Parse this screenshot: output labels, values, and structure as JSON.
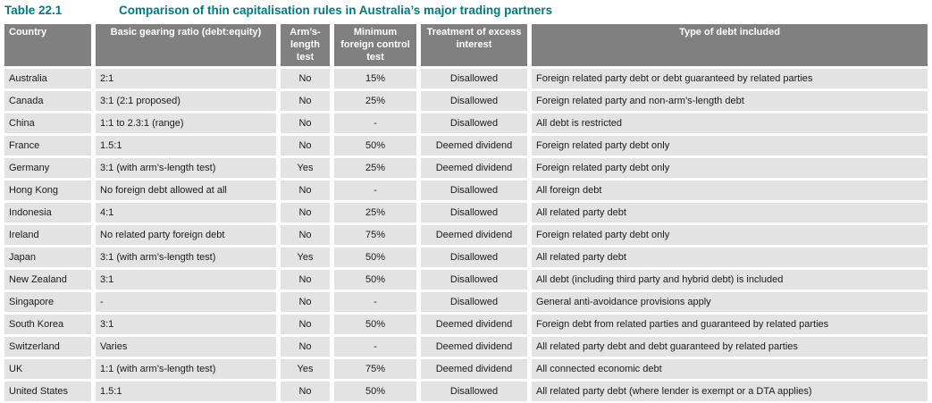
{
  "title": {
    "label": "Table 22.1",
    "text": "Comparison of thin capitalisation rules in Australia’s major trading partners"
  },
  "table": {
    "columns": [
      {
        "key": "country",
        "label": "Country",
        "header_align": "left",
        "cell_align": "left"
      },
      {
        "key": "gearing-ratio",
        "label": "Basic gearing ratio (debt:equity)",
        "header_align": "center",
        "cell_align": "left"
      },
      {
        "key": "arms-length-test",
        "label": "Arm’s-length test",
        "header_align": "center",
        "cell_align": "center"
      },
      {
        "key": "min-foreign-control-test",
        "label": "Minimum foreign control test",
        "header_align": "center",
        "cell_align": "center"
      },
      {
        "key": "excess-interest-treatment",
        "label": "Treatment of excess interest",
        "header_align": "center",
        "cell_align": "center"
      },
      {
        "key": "debt-type",
        "label": "Type of debt included",
        "header_align": "center",
        "cell_align": "left"
      }
    ],
    "rows": [
      [
        "Australia",
        "2:1",
        "No",
        "15%",
        "Disallowed",
        "Foreign related party debt or debt guaranteed by related parties"
      ],
      [
        "Canada",
        "3:1 (2:1 proposed)",
        "No",
        "25%",
        "Disallowed",
        "Foreign related party and non-arm’s-length debt"
      ],
      [
        "China",
        "1:1 to 2.3:1 (range)",
        "No",
        "-",
        "Disallowed",
        "All debt is restricted"
      ],
      [
        "France",
        "1.5:1",
        "No",
        "50%",
        "Deemed dividend",
        "Foreign related party debt only"
      ],
      [
        "Germany",
        "3:1 (with arm’s-length test)",
        "Yes",
        "25%",
        "Deemed dividend",
        "Foreign related party debt only"
      ],
      [
        "Hong Kong",
        "No foreign debt allowed at all",
        "No",
        "-",
        "Disallowed",
        "All foreign debt"
      ],
      [
        "Indonesia",
        "4:1",
        "No",
        "25%",
        "Disallowed",
        "All related party debt"
      ],
      [
        "Ireland",
        "No related party foreign debt",
        "No",
        "75%",
        "Deemed dividend",
        "Foreign related party debt only"
      ],
      [
        "Japan",
        "3:1 (with arm’s-length test)",
        "Yes",
        "50%",
        "Disallowed",
        "All related party debt"
      ],
      [
        "New Zealand",
        "3:1",
        "No",
        "50%",
        "Disallowed",
        "All debt (including third party and hybrid debt) is included"
      ],
      [
        "Singapore",
        "-",
        "No",
        "-",
        "Disallowed",
        "General anti-avoidance provisions apply"
      ],
      [
        "South Korea",
        "3:1",
        "No",
        "50%",
        "Deemed dividend",
        "Foreign debt from related parties and guaranteed by related parties"
      ],
      [
        "Switzerland",
        "Varies",
        "No",
        "-",
        "Deemed dividend",
        "All related party debt and debt guaranteed by related parties"
      ],
      [
        "UK",
        "1:1 (with arm’s-length test)",
        "Yes",
        "75%",
        "Deemed dividend",
        "All connected economic debt"
      ],
      [
        "United States",
        "1.5:1",
        "No",
        "50%",
        "Disallowed",
        "All related party debt (where lender is exempt or a DTA applies)"
      ]
    ]
  },
  "colors": {
    "title_teal": "#00797d",
    "header_bg": "#808080",
    "header_text": "#ffffff",
    "cell_bg": "#e3e3e3",
    "cell_text": "#1a1a1a"
  }
}
